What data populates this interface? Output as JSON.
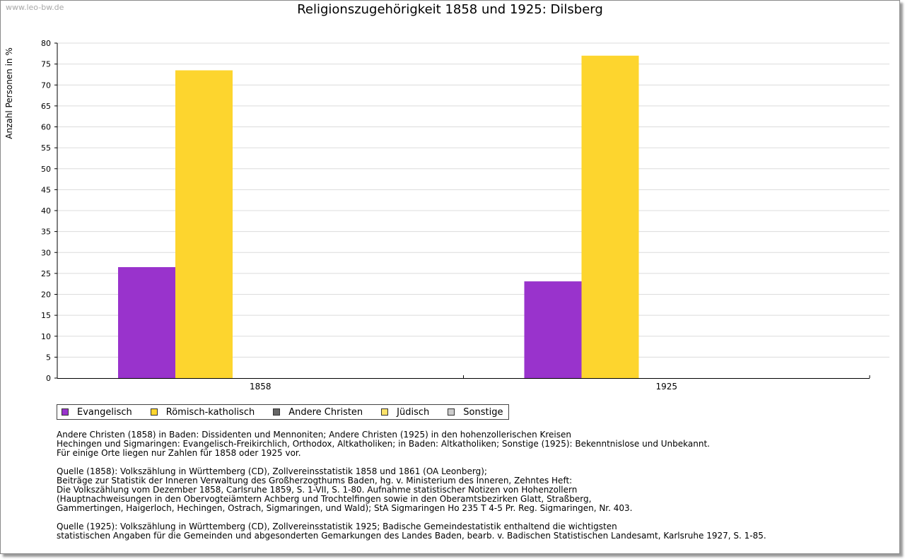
{
  "watermark": "www.leo-bw.de",
  "chart_data": {
    "type": "bar",
    "title": "Religionszugehörigkeit 1858 und 1925: Dilsberg",
    "ylabel": "Anzahl Personen in %",
    "xlabel": "",
    "categories": [
      "1858",
      "1925"
    ],
    "ylim": [
      0,
      80
    ],
    "yticks": [
      0,
      5,
      10,
      15,
      20,
      25,
      30,
      35,
      40,
      45,
      50,
      55,
      60,
      65,
      70,
      75,
      80
    ],
    "grid": true,
    "legend_position": "bottom",
    "series": [
      {
        "name": "Evangelisch",
        "color": "#9933cc",
        "values": [
          26.5,
          23.1
        ]
      },
      {
        "name": "Römisch-katholisch",
        "color": "#fdd52e",
        "values": [
          73.5,
          77
        ]
      },
      {
        "name": "Andere Christen",
        "color": "#666666",
        "values": [
          0,
          0
        ]
      },
      {
        "name": "Jüdisch",
        "color": "#fde26a",
        "values": [
          0,
          0
        ]
      },
      {
        "name": "Sonstige",
        "color": "#cccccc",
        "values": [
          0,
          0
        ]
      }
    ]
  },
  "notes": [
    "Andere Christen (1858) in Baden: Dissidenten und Mennoniten; Andere Christen (1925) in den hohenzollerischen Kreisen\nHechingen und Sigmaringen: Evangelisch-Freikirchlich, Orthodox, Altkatholiken; in Baden: Altkatholiken; Sonstige (1925): Bekenntnislose und Unbekannt.\nFür einige Orte liegen nur Zahlen für 1858 oder 1925 vor.",
    "Quelle (1858): Volkszählung in Württemberg (CD), Zollvereinsstatistik 1858 und 1861 (OA Leonberg);\nBeiträge zur Statistik der Inneren Verwaltung des Großherzogthums Baden, hg. v. Ministerium des Inneren, Zehntes Heft:\nDie Volkszählung vom Dezember 1858, Carlsruhe 1859, S. 1-VII, S. 1-80. Aufnahme statistischer Notizen von Hohenzollern\n(Hauptnachweisungen in den Obervogteiämtern Achberg und Trochtelfingen sowie in den Oberamtsbezirken Glatt, Straßberg,\nGammertingen, Haigerloch, Hechingen, Ostrach, Sigmaringen, und Wald); StA Sigmaringen Ho 235 T 4-5 Pr. Reg. Sigmaringen, Nr. 403.",
    "Quelle (1925): Volkszählung in Württemberg (CD), Zollvereinsstatistik 1925; Badische Gemeindestatistik enthaltend die wichtigsten\nstatistischen Angaben für die Gemeinden und abgesonderten Gemarkungen des Landes Baden, bearb. v. Badischen Statistischen Landesamt, Karlsruhe 1927, S. 1-85."
  ]
}
